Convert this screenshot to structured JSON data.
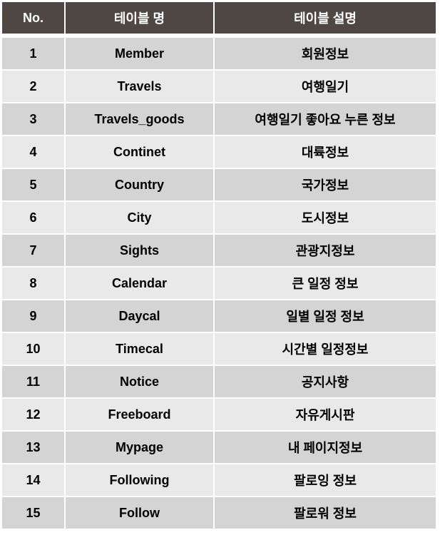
{
  "headers": [
    "No.",
    "테이블 명",
    "테이블 설명"
  ],
  "rows": [
    {
      "no": "1",
      "name": "Member",
      "desc": "회원정보"
    },
    {
      "no": "2",
      "name": "Travels",
      "desc": "여행일기"
    },
    {
      "no": "3",
      "name": "Travels_goods",
      "desc": "여행일기 좋아요 누른 정보"
    },
    {
      "no": "4",
      "name": "Continet",
      "desc": "대륙정보"
    },
    {
      "no": "5",
      "name": "Country",
      "desc": "국가정보"
    },
    {
      "no": "6",
      "name": "City",
      "desc": "도시정보"
    },
    {
      "no": "7",
      "name": "Sights",
      "desc": "관광지정보"
    },
    {
      "no": "8",
      "name": "Calendar",
      "desc": "큰 일정 정보"
    },
    {
      "no": "9",
      "name": "Daycal",
      "desc": "일별 일정 정보"
    },
    {
      "no": "10",
      "name": "Timecal",
      "desc": "시간별 일정정보"
    },
    {
      "no": "11",
      "name": "Notice",
      "desc": "공지사항"
    },
    {
      "no": "12",
      "name": "Freeboard",
      "desc": "자유게시판"
    },
    {
      "no": "13",
      "name": "Mypage",
      "desc": "내 페이지정보"
    },
    {
      "no": "14",
      "name": "Following",
      "desc": "팔로잉 정보"
    },
    {
      "no": "15",
      "name": "Follow",
      "desc": "팔로워 정보"
    }
  ],
  "colors": {
    "header_bg": "#4e4743",
    "header_text": "#ffffff",
    "row_dark": "#d4d4d4",
    "row_light": "#e9e9e9"
  }
}
